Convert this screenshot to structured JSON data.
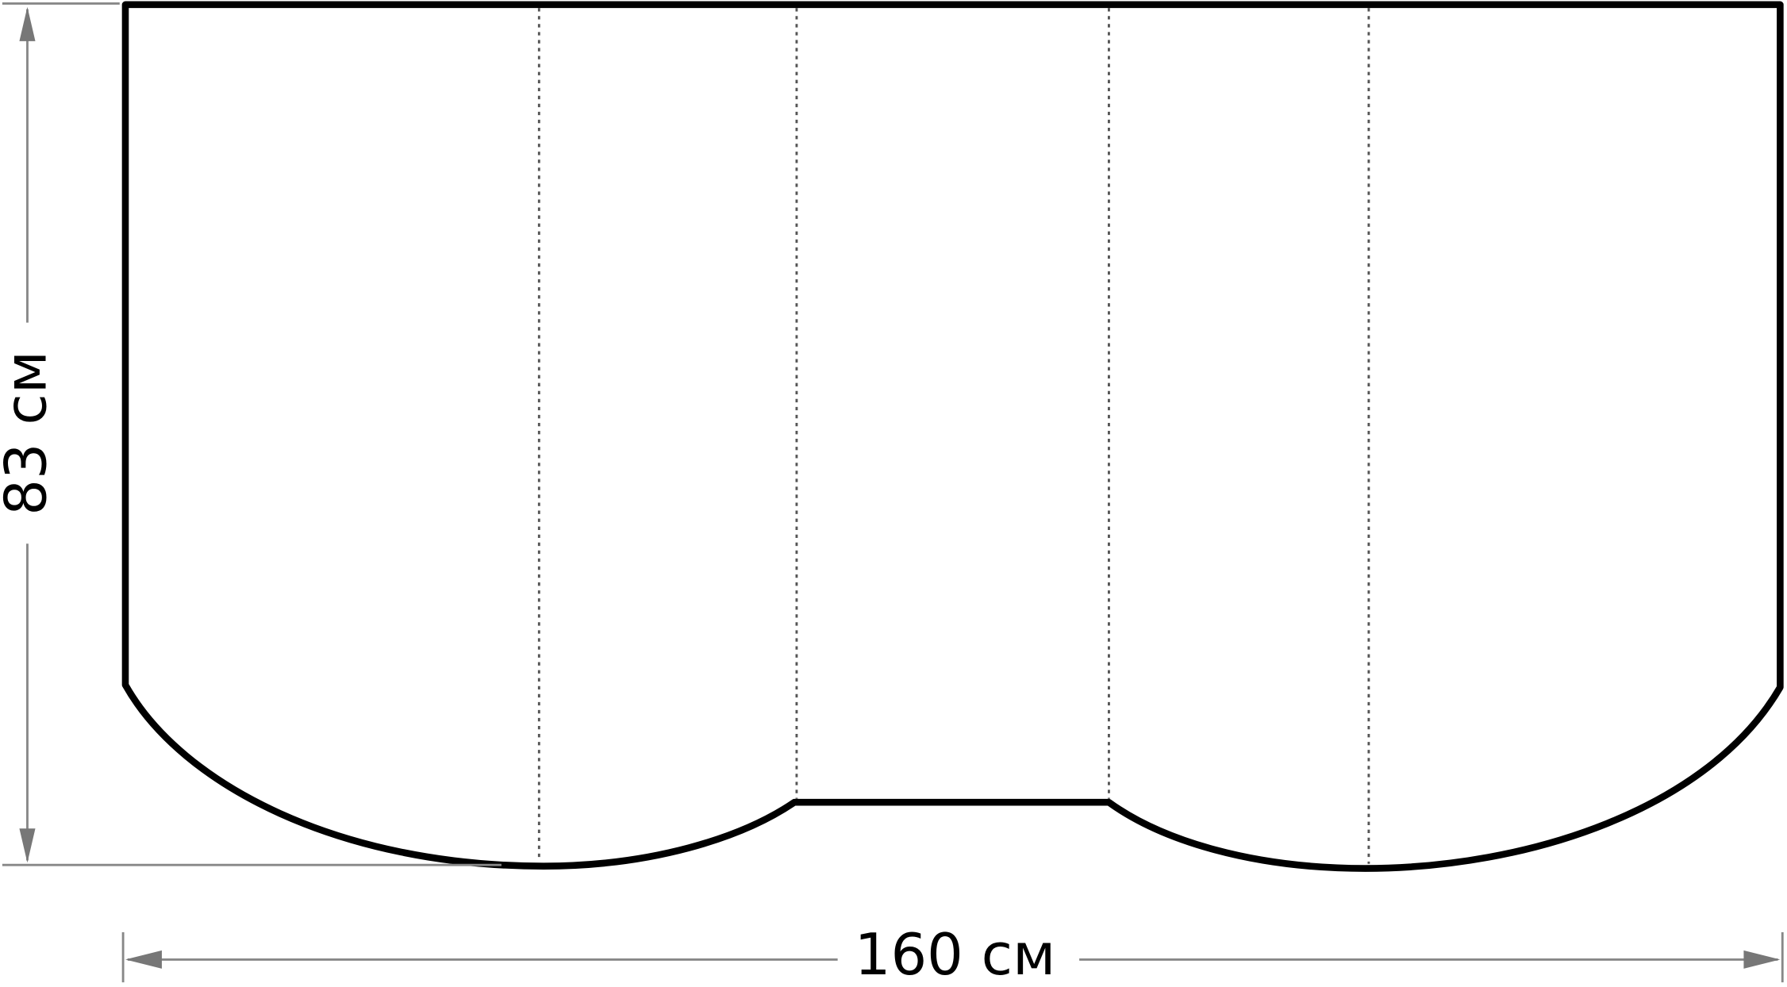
{
  "dimensions": {
    "height_label": "83 см",
    "width_label": "160 см"
  },
  "colors": {
    "outline": "#000000",
    "dimension_lines": "#777777",
    "fold_lines": "#555555"
  }
}
